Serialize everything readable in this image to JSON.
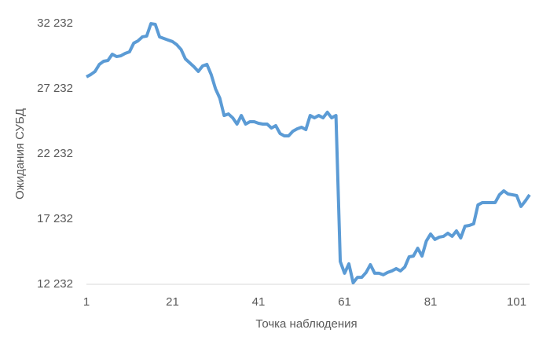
{
  "chart_data": {
    "type": "line",
    "x_label": "Точка наблюдения",
    "y_label": "Ожидания СУБД",
    "x": [
      1,
      2,
      3,
      4,
      5,
      6,
      7,
      8,
      9,
      10,
      11,
      12,
      13,
      14,
      15,
      16,
      17,
      18,
      19,
      20,
      21,
      22,
      23,
      24,
      25,
      26,
      27,
      28,
      29,
      30,
      31,
      32,
      33,
      34,
      35,
      36,
      37,
      38,
      39,
      40,
      41,
      42,
      43,
      44,
      45,
      46,
      47,
      48,
      49,
      50,
      51,
      52,
      53,
      54,
      55,
      56,
      57,
      58,
      59,
      60,
      61,
      62,
      63,
      64,
      65,
      66,
      67,
      68,
      69,
      70,
      71,
      72,
      73,
      74,
      75,
      76,
      77,
      78,
      79,
      80,
      81,
      82,
      83,
      84,
      85,
      86,
      87,
      88,
      89,
      90,
      91,
      92,
      93,
      94,
      95,
      96,
      97,
      98,
      99,
      100,
      101,
      102,
      103,
      104
    ],
    "series": [
      {
        "name": "Ожидания СУБД",
        "color": "#5b9bd5",
        "values": [
          28140,
          28320,
          28560,
          29100,
          29340,
          29400,
          29880,
          29700,
          29760,
          29940,
          30060,
          30730,
          30910,
          31210,
          31270,
          32230,
          32170,
          31210,
          31090,
          30970,
          30850,
          30610,
          30240,
          29520,
          29220,
          28920,
          28560,
          28980,
          29100,
          28320,
          27230,
          26510,
          25180,
          25300,
          25000,
          24520,
          25180,
          24520,
          24700,
          24700,
          24580,
          24520,
          24520,
          24220,
          24400,
          23800,
          23620,
          23620,
          23980,
          24160,
          24280,
          24100,
          25180,
          25000,
          25180,
          25000,
          25430,
          25000,
          25180,
          13980,
          13080,
          13800,
          12350,
          12770,
          12770,
          13140,
          13740,
          13080,
          13080,
          12960,
          13140,
          13260,
          13440,
          13260,
          13560,
          14340,
          14400,
          15000,
          14400,
          15550,
          16090,
          15670,
          15850,
          15910,
          16150,
          15910,
          16330,
          15790,
          16690,
          16750,
          16870,
          18320,
          18500,
          18500,
          18500,
          18500,
          19100,
          19400,
          19160,
          19100,
          19040,
          18200,
          18620,
          19100
        ]
      }
    ],
    "xlim": [
      1,
      104
    ],
    "xticks": [
      1,
      21,
      41,
      61,
      81,
      101
    ],
    "ylim": [
      12232,
      32232
    ],
    "yticks": [
      {
        "value": 12232,
        "label": "12 232"
      },
      {
        "value": 17232,
        "label": "17 232"
      },
      {
        "value": 22232,
        "label": "22 232"
      },
      {
        "value": 27232,
        "label": "27 232"
      },
      {
        "value": 32232,
        "label": "32 232"
      }
    ],
    "grid": false
  }
}
